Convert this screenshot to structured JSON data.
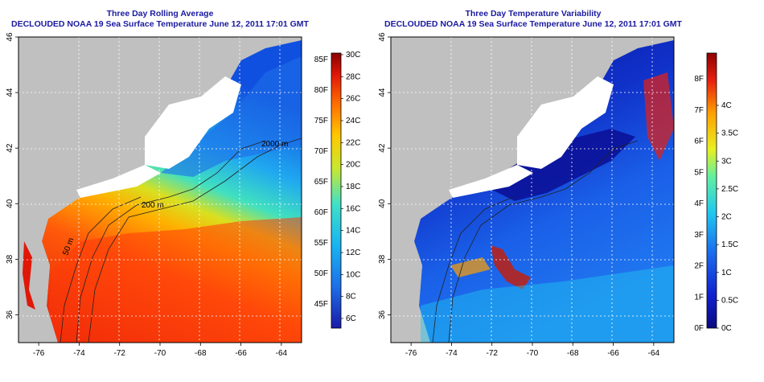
{
  "left_panel": {
    "title": "Three Day Rolling Average",
    "subtitle": "DECLOUDED NOAA 19 Sea Surface Temperature June 12, 2011 17:01 GMT",
    "x_ticks": [
      "-76",
      "-74",
      "-72",
      "-70",
      "-68",
      "-66",
      "-64"
    ],
    "y_ticks": [
      "36",
      "38",
      "40",
      "42",
      "44",
      "46"
    ],
    "colorbar": {
      "range_c": [
        5,
        30
      ],
      "left_labels": [
        "85F",
        "80F",
        "75F",
        "70F",
        "65F",
        "60F",
        "55F",
        "50F",
        "45F"
      ],
      "right_labels": [
        "30C",
        "28C",
        "26C",
        "24C",
        "22C",
        "20C",
        "18C",
        "16C",
        "14C",
        "12C",
        "10C",
        "8C",
        "6C"
      ]
    },
    "contours": {
      "labels": [
        "2000 m",
        "200 m",
        "50 m"
      ]
    }
  },
  "right_panel": {
    "title": "Three Day Temperature Variability",
    "subtitle": "DECLOUDED NOAA 19 Sea Surface Temperature June 12, 2011 17:01 GMT",
    "x_ticks": [
      "-76",
      "-74",
      "-72",
      "-70",
      "-68",
      "-66",
      "-64"
    ],
    "y_ticks": [
      "36",
      "38",
      "40",
      "42",
      "44",
      "46"
    ],
    "colorbar": {
      "range_c": [
        0,
        4.6
      ],
      "left_labels": [
        "8F",
        "7F",
        "6F",
        "5F",
        "4F",
        "3F",
        "2F",
        "1F",
        "0F"
      ],
      "right_labels": [
        "4C",
        "3.5C",
        "3C",
        "2.5C",
        "2C",
        "1.5C",
        "1C",
        "0.5C",
        "0C"
      ]
    }
  },
  "colors": {
    "land": "#c0c0c0",
    "cloud": "#ffffff",
    "title_blue": "#1a1aa0"
  }
}
